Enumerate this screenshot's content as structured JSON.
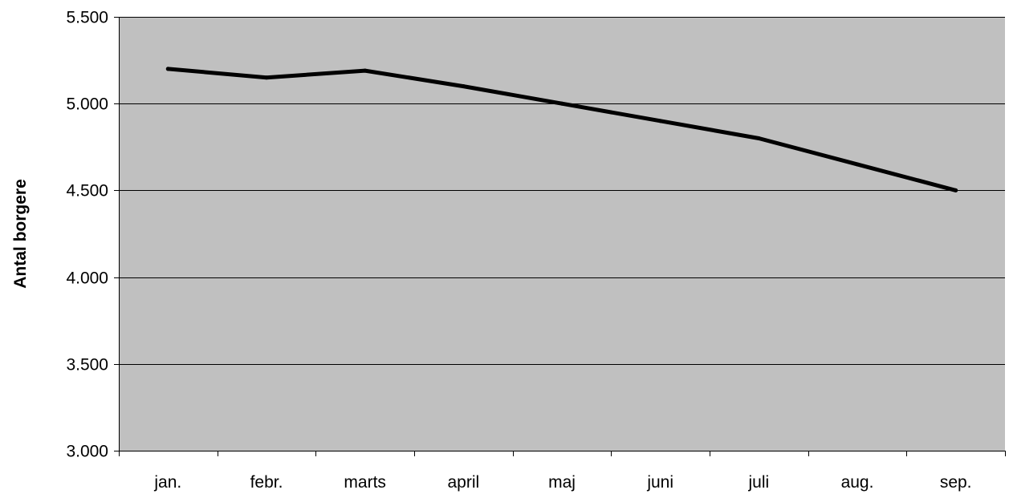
{
  "chart_data": {
    "type": "line",
    "title": "",
    "xlabel": "",
    "ylabel": "Antal borgere",
    "categories": [
      "jan.",
      "febr.",
      "marts",
      "april",
      "maj",
      "juni",
      "juli",
      "aug.",
      "sep."
    ],
    "series": [
      {
        "values": [
          5200,
          5150,
          5190,
          5100,
          5000,
          4900,
          4800,
          4650,
          4500
        ]
      }
    ],
    "ylim": [
      3000,
      5500
    ],
    "yticks": [
      3000,
      3500,
      4000,
      4500,
      5000,
      5500
    ],
    "ytick_labels": [
      "3.000",
      "3.500",
      "4.000",
      "4.500",
      "5.000",
      "5.500"
    ],
    "grid": true,
    "legend": "none",
    "colors": {
      "plot_background": "#c0c0c0",
      "line": "#000000",
      "gridline": "#000000",
      "axis": "#000000"
    }
  }
}
